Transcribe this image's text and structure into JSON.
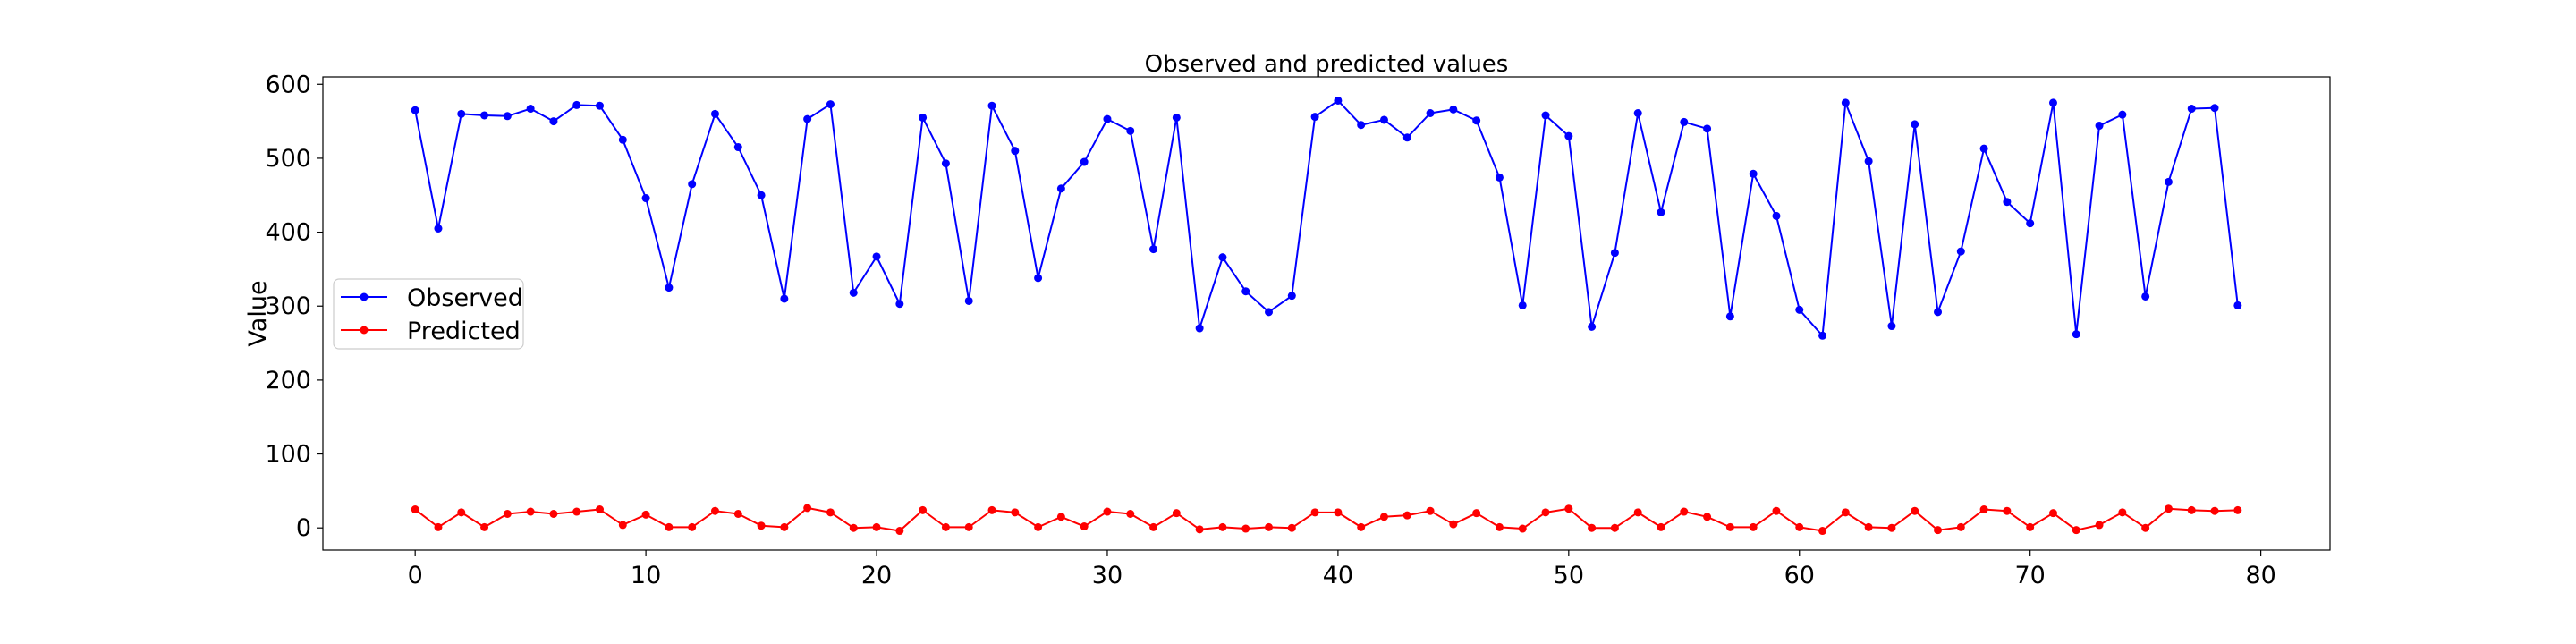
{
  "chart_data": {
    "type": "line",
    "title": "Observed and predicted values",
    "xlabel": "",
    "ylabel": "Value",
    "xlim": [
      -4,
      83
    ],
    "ylim": [
      -30,
      610
    ],
    "xticks": [
      0,
      10,
      20,
      30,
      40,
      50,
      60,
      70,
      80
    ],
    "yticks": [
      0,
      100,
      200,
      300,
      400,
      500,
      600
    ],
    "grid": false,
    "legend": "center-left",
    "x": [
      0,
      1,
      2,
      3,
      4,
      5,
      6,
      7,
      8,
      9,
      10,
      11,
      12,
      13,
      14,
      15,
      16,
      17,
      18,
      19,
      20,
      21,
      22,
      23,
      24,
      25,
      26,
      27,
      28,
      29,
      30,
      31,
      32,
      33,
      34,
      35,
      36,
      37,
      38,
      39,
      40,
      41,
      42,
      43,
      44,
      45,
      46,
      47,
      48,
      49,
      50,
      51,
      52,
      53,
      54,
      55,
      56,
      57,
      58,
      59,
      60,
      61,
      62,
      63,
      64,
      65,
      66,
      67,
      68,
      69,
      70,
      71,
      72,
      73,
      74,
      75,
      76,
      77,
      78,
      79
    ],
    "series": [
      {
        "name": "Observed",
        "color": "#0000ff",
        "marker": "circle",
        "values": [
          565,
          405,
          560,
          558,
          557,
          567,
          550,
          572,
          571,
          525,
          446,
          325,
          465,
          560,
          515,
          450,
          310,
          553,
          573,
          318,
          367,
          303,
          555,
          493,
          307,
          571,
          510,
          338,
          459,
          495,
          553,
          537,
          377,
          555,
          270,
          366,
          320,
          292,
          314,
          556,
          578,
          545,
          552,
          528,
          561,
          566,
          551,
          474,
          301,
          558,
          530,
          272,
          372,
          561,
          427,
          549,
          540,
          286,
          479,
          422,
          295,
          260,
          575,
          496,
          273,
          546,
          292,
          374,
          513,
          441,
          412,
          575,
          262,
          544,
          559,
          313,
          468,
          567,
          568,
          301
        ]
      },
      {
        "name": "Predicted",
        "color": "#ff0000",
        "marker": "circle",
        "values": [
          25,
          1,
          21,
          1,
          19,
          22,
          19,
          22,
          25,
          4,
          18,
          1,
          1,
          23,
          19,
          3,
          1,
          27,
          21,
          0,
          1,
          -4,
          24,
          1,
          1,
          24,
          21,
          1,
          15,
          2,
          22,
          19,
          1,
          20,
          -2,
          1,
          -1,
          1,
          0,
          21,
          21,
          1,
          15,
          17,
          23,
          5,
          20,
          1,
          -1,
          21,
          26,
          0,
          0,
          21,
          1,
          22,
          15,
          1,
          1,
          23,
          1,
          -4,
          21,
          1,
          0,
          23,
          -3,
          1,
          25,
          23,
          1,
          20,
          -3,
          4,
          21,
          0,
          26,
          24,
          23,
          24
        ]
      }
    ]
  }
}
